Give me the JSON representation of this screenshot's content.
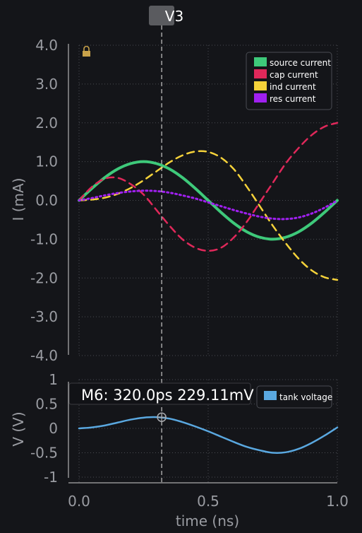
{
  "cursor": {
    "label": "V3"
  },
  "marker": {
    "readout": "M6: 320.0ps 229.11mV"
  },
  "colors": {
    "background": "#141519",
    "axis_text": "#9a9ca2",
    "grid": "#4a4c52",
    "source": "#3ec97a",
    "cap": "#e0285a",
    "ind": "#f5d23a",
    "res": "#a020f0",
    "tank": "#5aa8e0",
    "lock": "lock-icon"
  },
  "chart_data": [
    {
      "type": "line",
      "title": "",
      "xlabel": "",
      "ylabel": "I (mA)",
      "xlim": [
        0.0,
        1.0
      ],
      "ylim": [
        -4.0,
        4.0
      ],
      "y_ticks": [
        "4.0",
        "3.0",
        "2.0",
        "1.0",
        "0.0",
        "-1.0",
        "-2.0",
        "-3.0",
        "-4.0"
      ],
      "grid": true,
      "legend_position": "top-right",
      "x": [
        0.0,
        0.05,
        0.1,
        0.15,
        0.2,
        0.25,
        0.3,
        0.35,
        0.4,
        0.45,
        0.5,
        0.55,
        0.6,
        0.65,
        0.7,
        0.75,
        0.8,
        0.85,
        0.9,
        0.95,
        1.0
      ],
      "series": [
        {
          "name": "source current",
          "style": "solid",
          "values": [
            0.0,
            0.31,
            0.59,
            0.81,
            0.95,
            1.0,
            0.95,
            0.81,
            0.59,
            0.31,
            0.0,
            -0.31,
            -0.59,
            -0.81,
            -0.95,
            -1.0,
            -0.95,
            -0.81,
            -0.59,
            -0.31,
            0.0
          ]
        },
        {
          "name": "cap current",
          "style": "dashed",
          "values": [
            0.0,
            0.35,
            0.56,
            0.58,
            0.42,
            0.15,
            -0.25,
            -0.65,
            -1.0,
            -1.22,
            -1.3,
            -1.22,
            -0.95,
            -0.55,
            -0.05,
            0.45,
            0.95,
            1.35,
            1.68,
            1.9,
            2.0
          ]
        },
        {
          "name": "ind current",
          "style": "dashed",
          "values": [
            0.0,
            0.02,
            0.07,
            0.17,
            0.32,
            0.52,
            0.75,
            0.98,
            1.16,
            1.26,
            1.25,
            1.1,
            0.8,
            0.35,
            -0.15,
            -0.65,
            -1.1,
            -1.5,
            -1.8,
            -1.98,
            -2.05
          ]
        },
        {
          "name": "res current",
          "style": "dotted",
          "values": [
            0.0,
            0.06,
            0.13,
            0.19,
            0.23,
            0.25,
            0.24,
            0.2,
            0.13,
            0.05,
            -0.05,
            -0.15,
            -0.25,
            -0.34,
            -0.42,
            -0.47,
            -0.48,
            -0.44,
            -0.34,
            -0.19,
            0.0
          ]
        }
      ]
    },
    {
      "type": "line",
      "title": "",
      "xlabel": "time (ns)",
      "ylabel": "V (V)",
      "xlim": [
        0.0,
        1.0
      ],
      "ylim": [
        -1.0,
        1.0
      ],
      "y_ticks": [
        "1",
        "0.5",
        "0",
        "-0.5",
        "-1"
      ],
      "x_ticks": [
        "0.0",
        "0.5",
        "1.0"
      ],
      "grid": true,
      "legend_position": "top-right",
      "x": [
        0.0,
        0.05,
        0.1,
        0.15,
        0.2,
        0.25,
        0.3,
        0.35,
        0.4,
        0.45,
        0.5,
        0.55,
        0.6,
        0.65,
        0.7,
        0.75,
        0.8,
        0.85,
        0.9,
        0.95,
        1.0
      ],
      "series": [
        {
          "name": "tank voltage",
          "style": "solid",
          "values": [
            0.0,
            0.02,
            0.06,
            0.12,
            0.18,
            0.22,
            0.23,
            0.2,
            0.13,
            0.04,
            -0.06,
            -0.17,
            -0.28,
            -0.38,
            -0.45,
            -0.5,
            -0.49,
            -0.42,
            -0.3,
            -0.15,
            0.02
          ]
        }
      ],
      "marker": {
        "x": 0.32,
        "y": 0.22911
      },
      "cursor_x": 0.32
    }
  ]
}
